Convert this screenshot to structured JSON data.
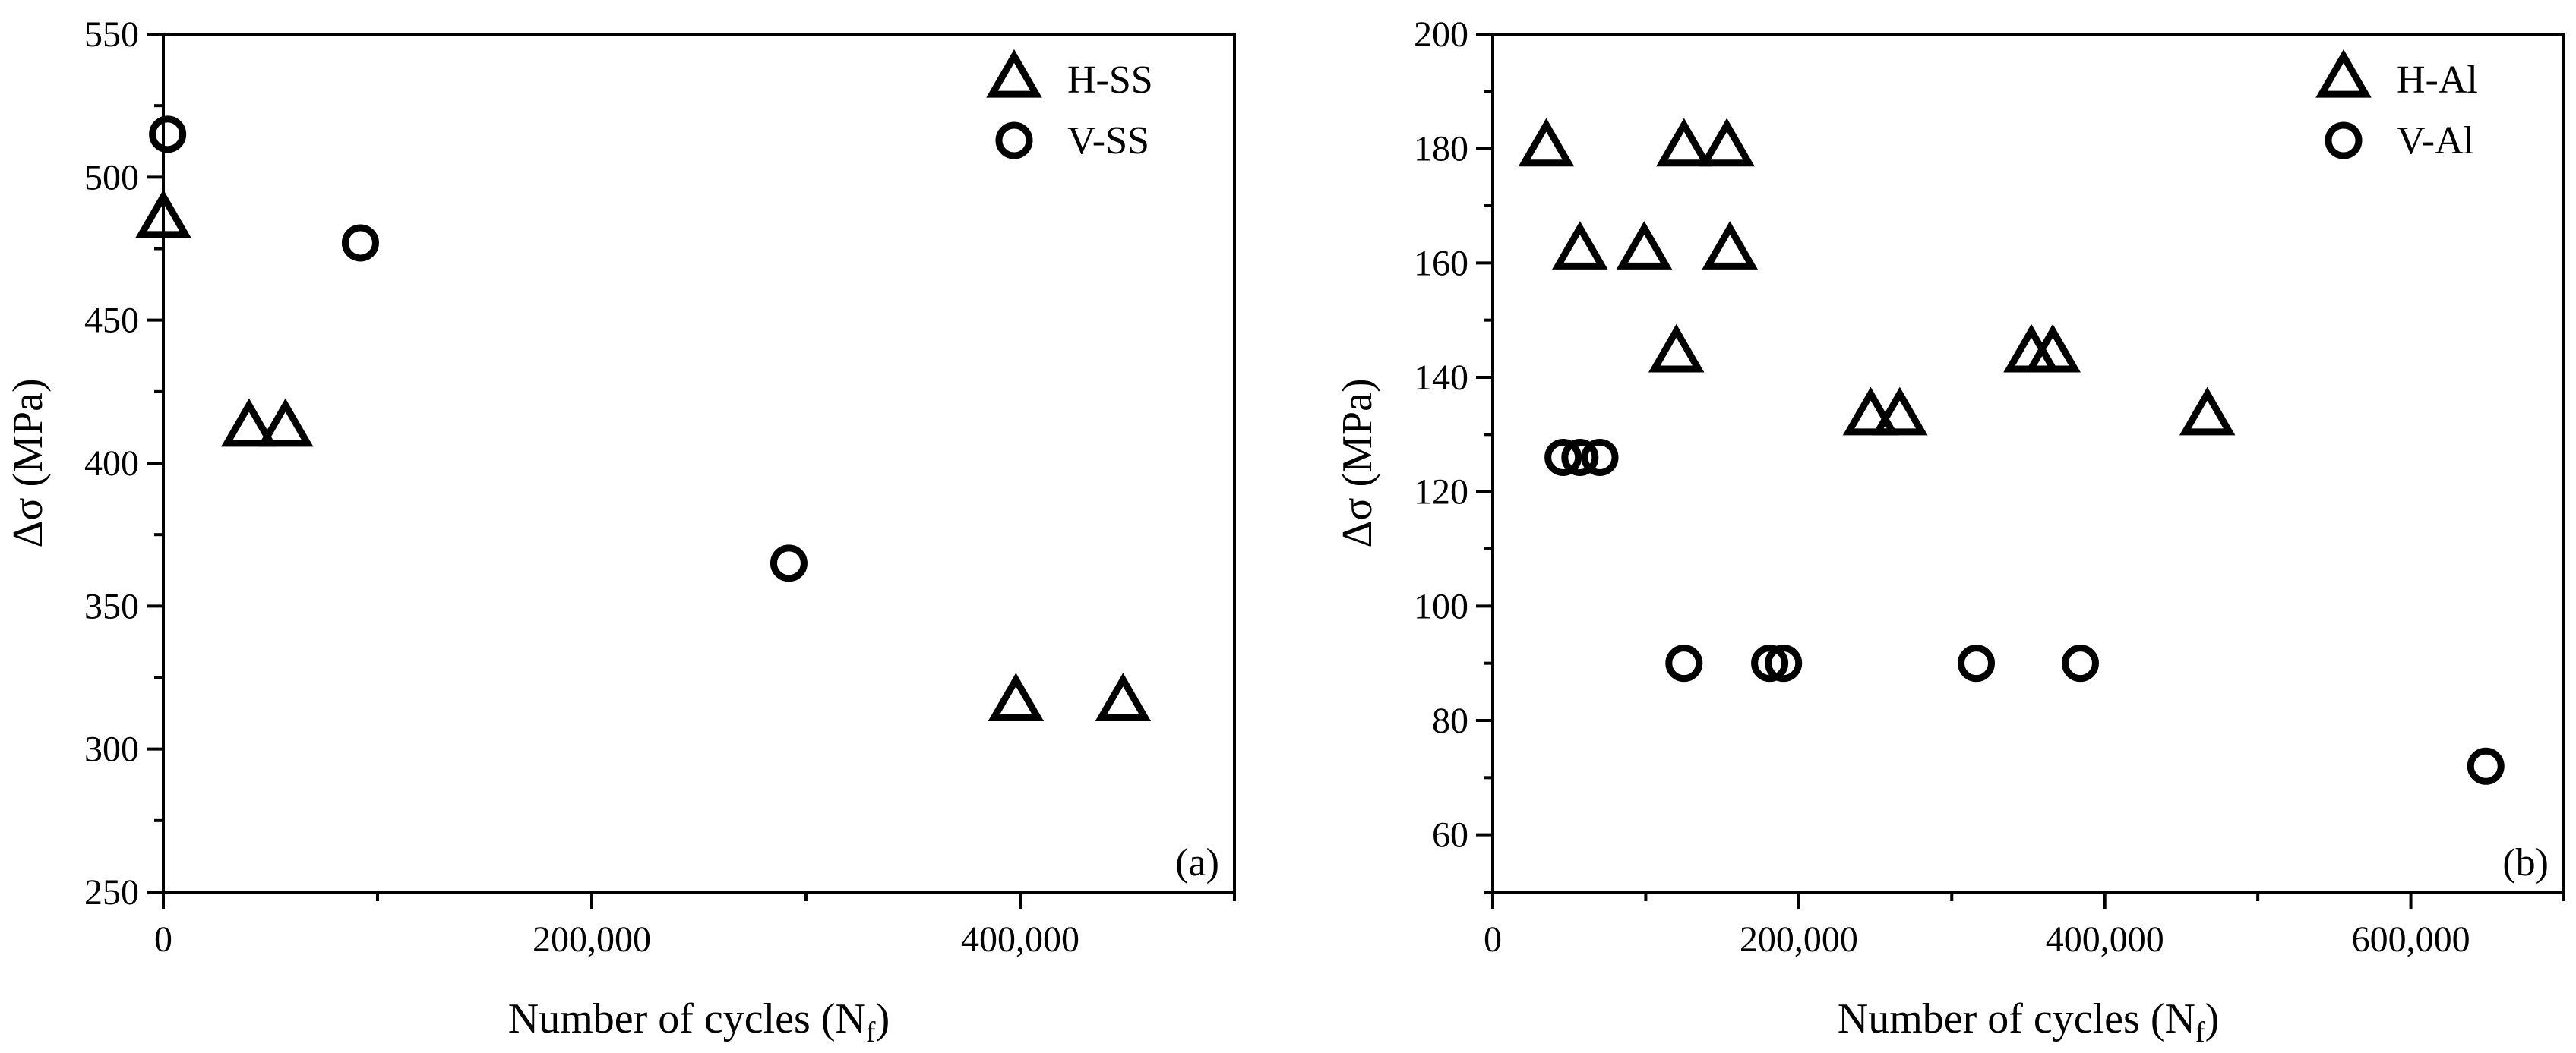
{
  "chart_data": [
    {
      "type": "scatter",
      "panel_label": "(a)",
      "xlabel": "Number of cycles (N",
      "xlabel_sub": "f",
      "xlabel_close": ")",
      "ylabel": "Δσ (MPa)",
      "xlim": [
        0,
        500000
      ],
      "ylim": [
        250,
        550
      ],
      "xticks": [
        0,
        200000,
        400000
      ],
      "xtick_labels": [
        "0",
        "200,000",
        "400,000"
      ],
      "yticks": [
        250,
        300,
        350,
        400,
        450,
        500,
        550
      ],
      "ytick_labels": [
        "250",
        "300",
        "350",
        "400",
        "450",
        "500",
        "550"
      ],
      "grid": false,
      "legend_position": "top-right",
      "series": [
        {
          "name": "H-SS",
          "marker": "triangle",
          "points": [
            [
              0,
              485
            ],
            [
              40000,
              412
            ],
            [
              57000,
              412
            ],
            [
              398000,
              316
            ],
            [
              448000,
              316
            ]
          ]
        },
        {
          "name": "V-SS",
          "marker": "circle",
          "points": [
            [
              2000,
              515
            ],
            [
              92000,
              477
            ],
            [
              292000,
              365
            ]
          ]
        }
      ]
    },
    {
      "type": "scatter",
      "panel_label": "(b)",
      "xlabel": "Number of cycles (N",
      "xlabel_sub": "f",
      "xlabel_close": ")",
      "ylabel": "Δσ (MPa)",
      "xlim": [
        0,
        700000
      ],
      "ylim": [
        50,
        200
      ],
      "xticks": [
        0,
        200000,
        400000,
        600000
      ],
      "xtick_labels": [
        "0",
        "200,000",
        "400,000",
        "600,000"
      ],
      "yticks": [
        60,
        80,
        100,
        120,
        140,
        160,
        180,
        200
      ],
      "ytick_labels": [
        "60",
        "80",
        "100",
        "120",
        "140",
        "160",
        "180",
        "200"
      ],
      "grid": false,
      "legend_position": "top-right",
      "series": [
        {
          "name": "H-Al",
          "marker": "triangle",
          "points": [
            [
              35000,
              180
            ],
            [
              125000,
              180
            ],
            [
              153000,
              180
            ],
            [
              57000,
              162
            ],
            [
              99000,
              162
            ],
            [
              155000,
              162
            ],
            [
              120000,
              144
            ],
            [
              352000,
              144
            ],
            [
              366000,
              144
            ],
            [
              247000,
              133
            ],
            [
              266000,
              133
            ],
            [
              467000,
              133
            ]
          ]
        },
        {
          "name": "V-Al",
          "marker": "circle",
          "points": [
            [
              46000,
              126
            ],
            [
              57000,
              126
            ],
            [
              70000,
              126
            ],
            [
              125000,
              90
            ],
            [
              181000,
              90
            ],
            [
              190000,
              90
            ],
            [
              316000,
              90
            ],
            [
              384000,
              90
            ],
            [
              649000,
              72
            ]
          ]
        }
      ]
    }
  ]
}
